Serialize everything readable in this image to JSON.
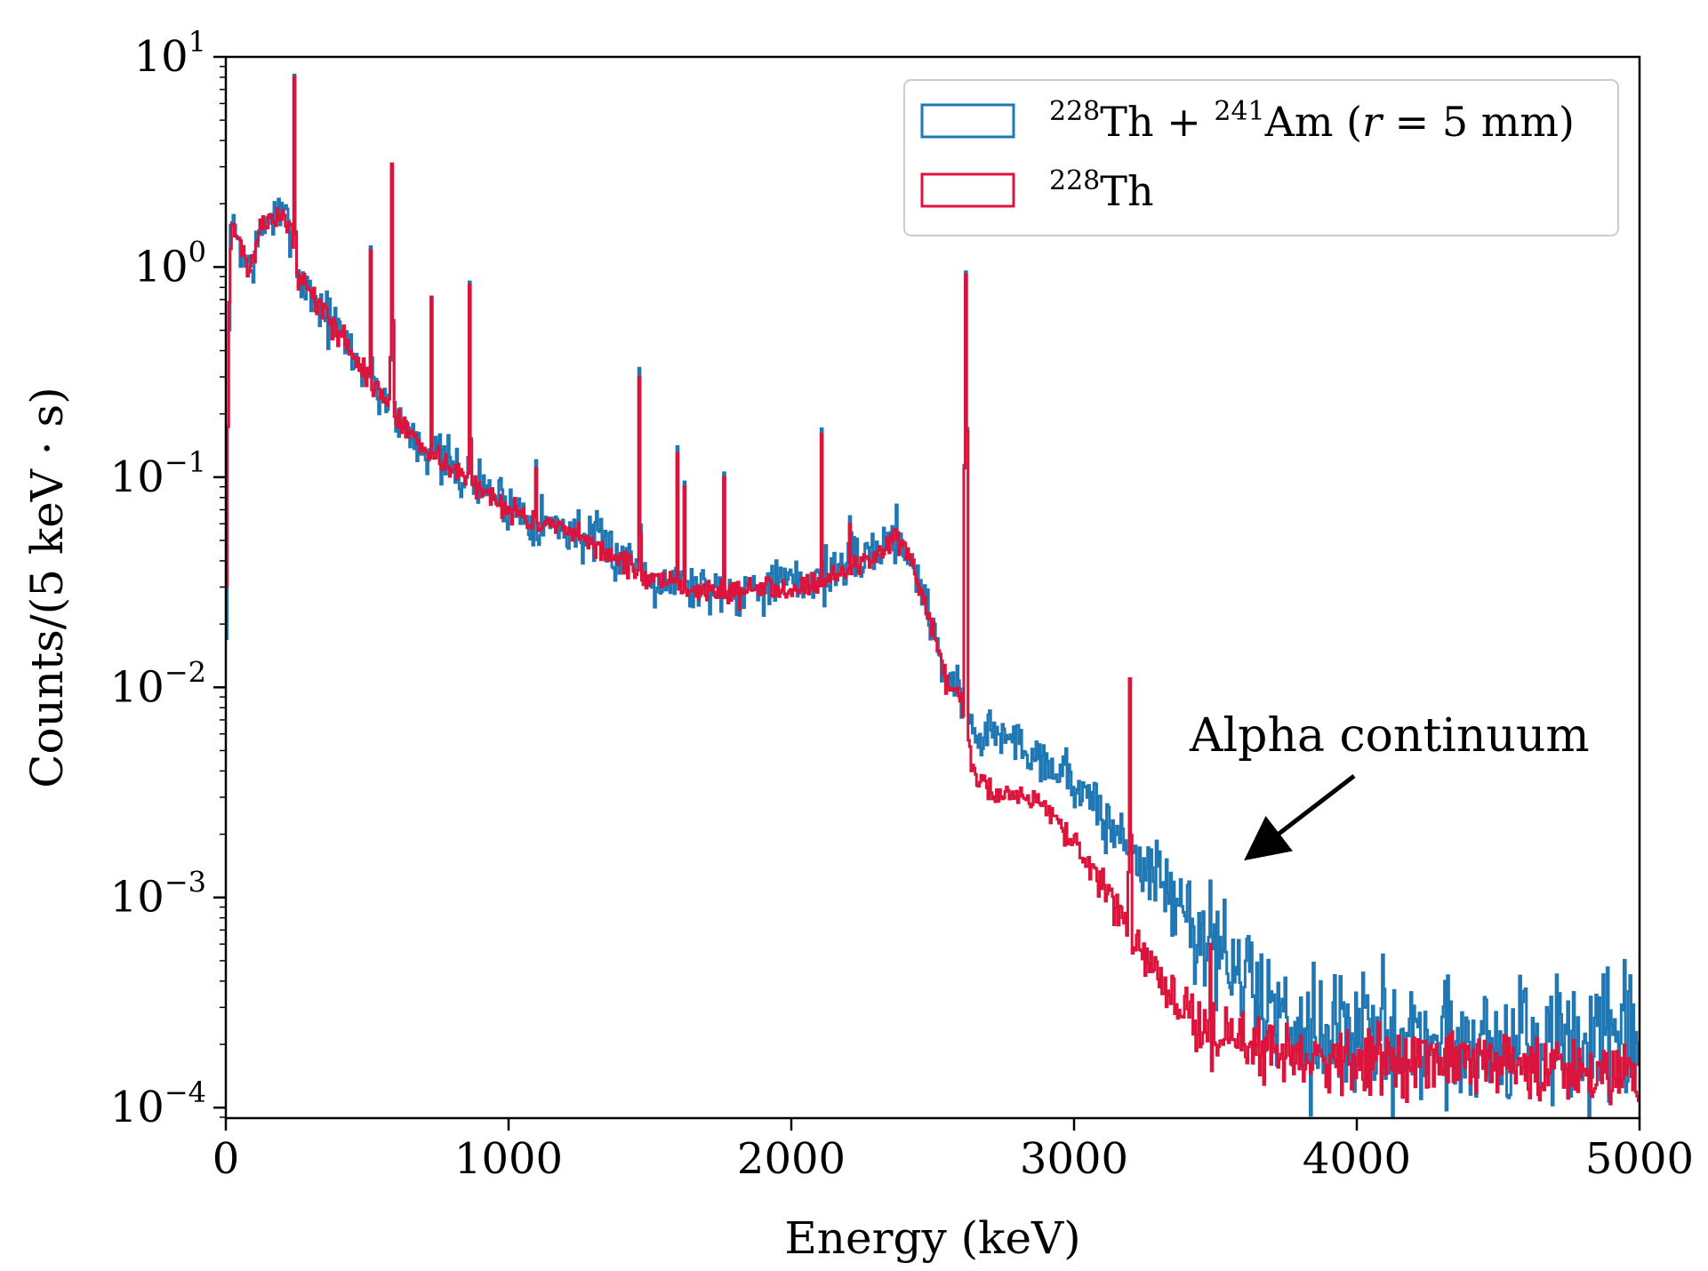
{
  "chart_data": {
    "type": "line",
    "step": true,
    "xlabel": "Energy (keV)",
    "ylabel": "Counts/(5 keV · s)",
    "xlim": [
      0,
      5000
    ],
    "ylim_log10": [
      -4.05,
      1
    ],
    "yscale": "log",
    "bin_width_keV": 5,
    "x_ticks": [
      "0",
      "1000",
      "2000",
      "3000",
      "4000",
      "5000"
    ],
    "x_tick_values": [
      0,
      1000,
      2000,
      3000,
      4000,
      5000
    ],
    "y_ticks": [
      {
        "base": "10",
        "exp": "1",
        "value": 10
      },
      {
        "base": "10",
        "exp": "0",
        "value": 1
      },
      {
        "base": "10",
        "exp": "−1",
        "value": 0.1
      },
      {
        "base": "10",
        "exp": "−2",
        "value": 0.01
      },
      {
        "base": "10",
        "exp": "−3",
        "value": 0.001
      },
      {
        "base": "10",
        "exp": "−4",
        "value": 0.0001
      }
    ],
    "legend": {
      "position": "top-right",
      "entries": [
        {
          "mass1": "228",
          "text1": "Th + ",
          "mass2": "241",
          "text2": "Am (",
          "var": "r",
          "text3": " = 5 mm)",
          "color": "#1f77b4"
        },
        {
          "mass1": "228",
          "text1": "Th",
          "color": "#dc143c"
        }
      ]
    },
    "annotation": {
      "text": "Alpha continuum",
      "arrow_tip": [
        3610,
        0.00155
      ],
      "text_anchor": [
        3700,
        0.005
      ]
    },
    "series": [
      {
        "name": "228Th + 241Am (r = 5 mm)",
        "color": "#1f77b4",
        "continuum": [
          [
            0,
            0.005
          ],
          [
            10,
            0.5
          ],
          [
            20,
            1.6
          ],
          [
            40,
            1.45
          ],
          [
            70,
            1.05
          ],
          [
            90,
            1.0
          ],
          [
            120,
            1.4
          ],
          [
            150,
            1.75
          ],
          [
            200,
            1.7
          ],
          [
            230,
            1.6
          ],
          [
            250,
            0.95
          ],
          [
            290,
            0.78
          ],
          [
            350,
            0.6
          ],
          [
            420,
            0.45
          ],
          [
            500,
            0.3
          ],
          [
            560,
            0.24
          ],
          [
            600,
            0.19
          ],
          [
            700,
            0.14
          ],
          [
            800,
            0.11
          ],
          [
            900,
            0.09
          ],
          [
            1000,
            0.075
          ],
          [
            1100,
            0.062
          ],
          [
            1200,
            0.057
          ],
          [
            1300,
            0.05
          ],
          [
            1400,
            0.042
          ],
          [
            1500,
            0.034
          ],
          [
            1600,
            0.031
          ],
          [
            1700,
            0.03
          ],
          [
            1800,
            0.029
          ],
          [
            1900,
            0.031
          ],
          [
            2000,
            0.031
          ],
          [
            2100,
            0.034
          ],
          [
            2200,
            0.038
          ],
          [
            2300,
            0.045
          ],
          [
            2370,
            0.054
          ],
          [
            2400,
            0.048
          ],
          [
            2450,
            0.032
          ],
          [
            2500,
            0.02
          ],
          [
            2550,
            0.011
          ],
          [
            2600,
            0.0095
          ],
          [
            2640,
            0.006
          ],
          [
            2700,
            0.0062
          ],
          [
            2800,
            0.0055
          ],
          [
            2900,
            0.0045
          ],
          [
            3000,
            0.0036
          ],
          [
            3100,
            0.0024
          ],
          [
            3200,
            0.0017
          ],
          [
            3300,
            0.0012
          ],
          [
            3400,
            0.0008
          ],
          [
            3500,
            0.00055
          ],
          [
            3600,
            0.0004
          ],
          [
            3700,
            0.0003
          ],
          [
            3800,
            0.00025
          ],
          [
            4000,
            0.00022
          ],
          [
            4500,
            0.0002
          ],
          [
            5000,
            0.0002
          ]
        ],
        "peaks": [
          [
            238,
            8.2
          ],
          [
            510,
            1.25
          ],
          [
            583,
            3.0
          ],
          [
            727,
            0.72
          ],
          [
            860,
            0.85
          ],
          [
            1093,
            0.12
          ],
          [
            1461,
            0.33
          ],
          [
            1593,
            0.14
          ],
          [
            1621,
            0.095
          ],
          [
            1761,
            0.105
          ],
          [
            2103,
            0.17
          ],
          [
            2204,
            0.065
          ],
          [
            2614,
            0.95
          ],
          [
            3197,
            0.011
          ],
          [
            3480,
            0.0012
          ]
        ],
        "noise": 0.35,
        "floor": 9e-05,
        "seed": 7
      },
      {
        "name": "228Th",
        "color": "#dc143c",
        "continuum": [
          [
            0,
            0.012
          ],
          [
            10,
            0.5
          ],
          [
            20,
            1.6
          ],
          [
            40,
            1.45
          ],
          [
            70,
            1.05
          ],
          [
            90,
            1.0
          ],
          [
            120,
            1.4
          ],
          [
            150,
            1.75
          ],
          [
            200,
            1.7
          ],
          [
            230,
            1.6
          ],
          [
            250,
            0.95
          ],
          [
            290,
            0.78
          ],
          [
            350,
            0.6
          ],
          [
            420,
            0.45
          ],
          [
            500,
            0.3
          ],
          [
            560,
            0.24
          ],
          [
            600,
            0.19
          ],
          [
            700,
            0.14
          ],
          [
            800,
            0.11
          ],
          [
            900,
            0.088
          ],
          [
            1000,
            0.072
          ],
          [
            1100,
            0.06
          ],
          [
            1200,
            0.055
          ],
          [
            1300,
            0.048
          ],
          [
            1400,
            0.04
          ],
          [
            1500,
            0.032
          ],
          [
            1600,
            0.03
          ],
          [
            1700,
            0.029
          ],
          [
            1800,
            0.028
          ],
          [
            1900,
            0.03
          ],
          [
            2000,
            0.03
          ],
          [
            2100,
            0.032
          ],
          [
            2200,
            0.036
          ],
          [
            2300,
            0.043
          ],
          [
            2370,
            0.052
          ],
          [
            2400,
            0.046
          ],
          [
            2450,
            0.03
          ],
          [
            2500,
            0.018
          ],
          [
            2550,
            0.0105
          ],
          [
            2600,
            0.009
          ],
          [
            2640,
            0.004
          ],
          [
            2700,
            0.0032
          ],
          [
            2800,
            0.0031
          ],
          [
            2900,
            0.0028
          ],
          [
            3000,
            0.0018
          ],
          [
            3100,
            0.0011
          ],
          [
            3200,
            0.0007
          ],
          [
            3300,
            0.00038
          ],
          [
            3400,
            0.00028
          ],
          [
            3500,
            0.00022
          ],
          [
            3600,
            0.0002
          ],
          [
            3700,
            0.00019
          ],
          [
            3800,
            0.00018
          ],
          [
            4000,
            0.00017
          ],
          [
            4500,
            0.00016
          ],
          [
            5000,
            0.00015
          ]
        ],
        "peaks": [
          [
            238,
            8.0
          ],
          [
            510,
            1.2
          ],
          [
            583,
            3.1
          ],
          [
            727,
            0.72
          ],
          [
            860,
            0.82
          ],
          [
            1093,
            0.11
          ],
          [
            1461,
            0.3
          ],
          [
            1593,
            0.13
          ],
          [
            1621,
            0.09
          ],
          [
            1761,
            0.1
          ],
          [
            2103,
            0.16
          ],
          [
            2204,
            0.06
          ],
          [
            2614,
            0.92
          ],
          [
            3197,
            0.011
          ],
          [
            3480,
            0.0006
          ]
        ],
        "noise": 0.16,
        "floor": 9e-05,
        "seed": 13
      }
    ]
  }
}
